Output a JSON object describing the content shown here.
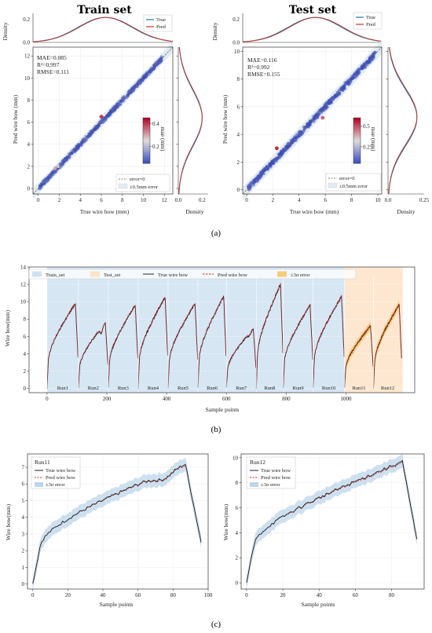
{
  "panel_a": {
    "caption": "(a)",
    "train": {
      "title": "Train set",
      "xlabel": "True wire bow (mm)",
      "ylabel": "Pred wire bow (mm)",
      "density_label": "Density",
      "metrics": [
        "MAE=0.085",
        "R²=0.997",
        "RMSE=0.111"
      ],
      "colorbar_label": "mae (mm)",
      "colorbar_ticks": [
        0.2,
        0.4
      ],
      "colorbar_range": [
        0.05,
        0.45
      ],
      "top_legend": [
        "True",
        "Pred"
      ],
      "bottom_legend": [
        "error=0",
        "±0.5mm error"
      ],
      "xlim": [
        -0.5,
        12.8
      ],
      "ylim": [
        -0.5,
        12.8
      ],
      "ticks": [
        0,
        2,
        4,
        6,
        8,
        10,
        12
      ],
      "top_density_ticks": [
        0.0,
        0.2
      ],
      "right_density_ticks": [
        0.0,
        0.2
      ],
      "outliers": [
        [
          6.0,
          6.5,
          0.42
        ],
        [
          1.6,
          1.8,
          0.3
        ],
        [
          1.9,
          2.0,
          0.25
        ]
      ]
    },
    "test": {
      "title": "Test set",
      "xlabel": "True wire bow (mm)",
      "ylabel": "Pred wire bow (mm)",
      "density_label": "Density",
      "metrics": [
        "MAE=0.116",
        "R²=0.992",
        "RMSE=0.155"
      ],
      "colorbar_label": "mae (mm)",
      "colorbar_ticks": [
        0.25,
        0.5
      ],
      "colorbar_range": [
        0.05,
        0.6
      ],
      "top_legend": [
        "True",
        "Pred"
      ],
      "bottom_legend": [
        "error=0",
        "±0.5mm error"
      ],
      "xlim": [
        -0.3,
        10.3
      ],
      "ylim": [
        -0.3,
        10.3
      ],
      "ticks": [
        0,
        2,
        4,
        6,
        8,
        10
      ],
      "top_density_ticks": [
        0.0,
        0.2
      ],
      "right_density_ticks": [
        0.0,
        0.25
      ],
      "outliers": [
        [
          2.3,
          3.0,
          0.58
        ],
        [
          5.8,
          5.2,
          0.5
        ]
      ]
    }
  },
  "panel_b": {
    "caption": "(b)",
    "xlabel": "Sample points",
    "ylabel": "Wire bow(mm)",
    "legend": [
      "Train_set",
      "Test_set",
      "True wire bow",
      "Pred wire bow",
      "±3σ error"
    ],
    "xlim": [
      -60,
      1230
    ],
    "ylim": [
      -0.5,
      14
    ],
    "xticks": [
      0,
      200,
      400,
      600,
      800,
      1000
    ],
    "yticks": [
      0,
      2,
      4,
      6,
      8,
      10,
      12,
      14
    ],
    "train_span": [
      0,
      995
    ],
    "test_span": [
      995,
      1190
    ],
    "runs": [
      {
        "label": "Run1",
        "start": 0,
        "end": 105,
        "peak": 9.8
      },
      {
        "label": "Run2",
        "start": 105,
        "end": 205,
        "peak": 7.6
      },
      {
        "label": "Run3",
        "start": 205,
        "end": 305,
        "peak": 9.6
      },
      {
        "label": "Run4",
        "start": 305,
        "end": 405,
        "peak": 10.5
      },
      {
        "label": "Run5",
        "start": 405,
        "end": 505,
        "peak": 9.8
      },
      {
        "label": "Run6",
        "start": 505,
        "end": 600,
        "peak": 10.6
      },
      {
        "label": "Run7",
        "start": 600,
        "end": 700,
        "peak": 6.9
      },
      {
        "label": "Run8",
        "start": 700,
        "end": 790,
        "peak": 12.0
      },
      {
        "label": "Run9",
        "start": 790,
        "end": 890,
        "peak": 9.6
      },
      {
        "label": "Run10",
        "start": 890,
        "end": 995,
        "peak": 10.6
      },
      {
        "label": "Run11",
        "start": 995,
        "end": 1092,
        "peak": 7.2
      },
      {
        "label": "Run12",
        "start": 1092,
        "end": 1187,
        "peak": 9.7
      }
    ]
  },
  "panel_c": {
    "caption": "(c)",
    "left": {
      "title": "Run11",
      "xlabel": "Sample points",
      "ylabel": "Wire bow(mm)",
      "legend": [
        "True wire bow",
        "Pred wire bow",
        "±3σ error"
      ],
      "xlim": [
        -3,
        100
      ],
      "ylim": [
        -0.3,
        7.8
      ],
      "xticks": [
        0,
        20,
        40,
        60,
        80,
        100
      ],
      "yticks": [
        0,
        1,
        2,
        3,
        4,
        5,
        6,
        7
      ],
      "n": 97,
      "peak": 7.2
    },
    "right": {
      "title": "Run12",
      "xlabel": "Sample points",
      "ylabel": "Wire bow(mm)",
      "legend": [
        "True wire bow",
        "Pred wire bow",
        "±3σ error"
      ],
      "xlim": [
        -3,
        98
      ],
      "ylim": [
        -0.5,
        10.3
      ],
      "xticks": [
        0,
        20,
        40,
        60,
        80
      ],
      "yticks": [
        0,
        2,
        4,
        6,
        8,
        10
      ],
      "n": 95,
      "peak": 9.7
    }
  },
  "colors": {
    "true": "#1f77b4",
    "pred": "#c0392b",
    "true_line": "#222222",
    "pred_dash": "#d62728",
    "train_bg": "#cfe2f1",
    "test_bg": "#fde3c8",
    "band_b": "#f5b942",
    "band_c": "#bcd6ea"
  }
}
